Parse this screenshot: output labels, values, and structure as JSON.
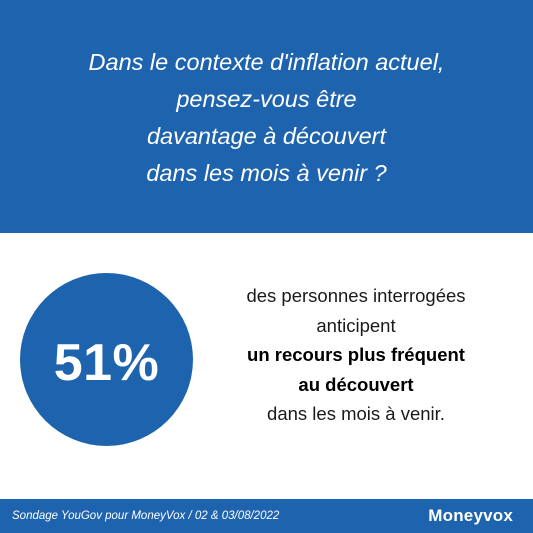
{
  "question": {
    "lines": [
      "Dans le contexte d'inflation actuel,",
      "pensez-vous être",
      "davantage à découvert",
      "dans les mois à venir ?"
    ]
  },
  "stat": {
    "value": "51%",
    "description": [
      "des personnes interrogées",
      "anticipent",
      "un recours plus fréquent",
      "au découvert",
      "dans les mois à venir."
    ]
  },
  "footer": {
    "source": "Sondage YouGov pour MoneyVox / 02 & 03/08/2022",
    "logo": "Moneyvox"
  },
  "colors": {
    "brand_blue": "#1e63ad",
    "text_dark": "#1a1a1a",
    "white": "#ffffff"
  }
}
